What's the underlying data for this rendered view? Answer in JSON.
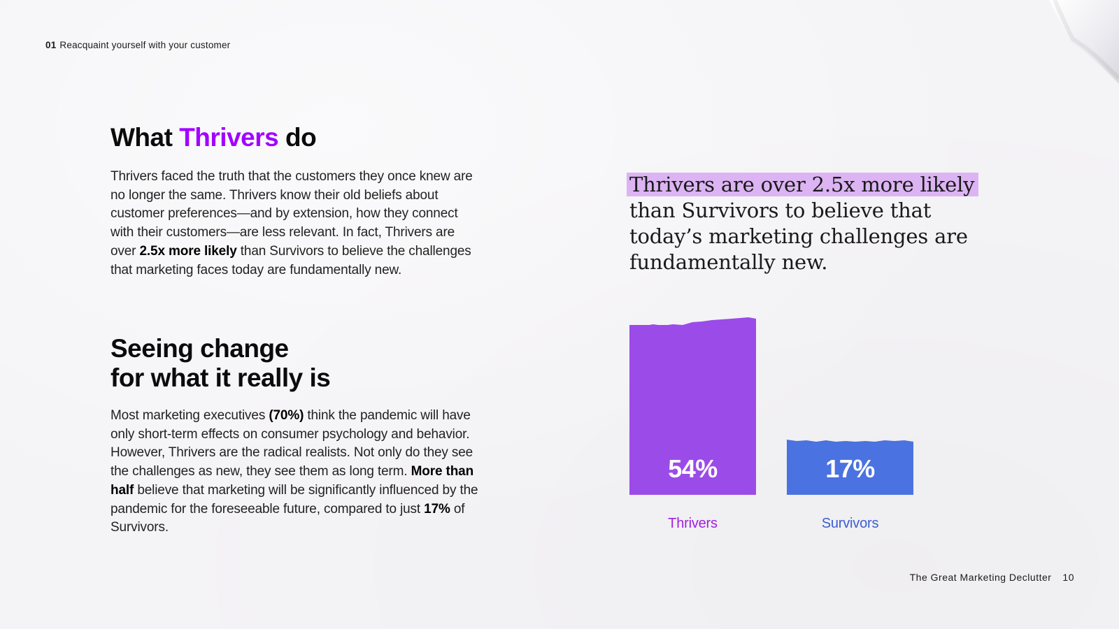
{
  "header": {
    "section_number": "01",
    "section_title": "Reacquaint yourself with your customer"
  },
  "heading1": {
    "prefix": "What ",
    "accent": "Thrivers",
    "suffix": " do"
  },
  "paragraph1": {
    "part1": "Thrivers faced the truth that the customers they once knew are no longer the same. Thrivers know their old beliefs about customer preferences—and by extension, how they connect with their customers—are less relevant. In fact, Thrivers are over ",
    "bold1": "2.5x more likely",
    "part2": " than Survivors to believe the challenges that marketing faces today are fundamentally new."
  },
  "heading2": {
    "line1": "Seeing change",
    "line2": "for what it really is"
  },
  "paragraph2": {
    "part1": "Most marketing executives ",
    "bold1": "(70%)",
    "part2": " think the pandemic will have only short-term effects on consumer psychology and behavior. However, Thrivers are the radical realists. Not only do they see the challenges as new, they see them as long term. ",
    "bold2": "More than half",
    "part3": " believe that marketing will be significantly influenced by the pandemic for the foreseeable future, compared to just ",
    "bold3": "17%",
    "part4": " of Survivors."
  },
  "quote": {
    "highlight": "Thrivers are over 2.5x more likely",
    "rest": " than Survivors to believe that today’s marketing challenges are fundamentally new."
  },
  "chart_data": {
    "type": "bar",
    "title": "",
    "categories": [
      "Thrivers",
      "Survivors"
    ],
    "values": [
      54,
      17
    ],
    "value_labels": [
      "54%",
      "17%"
    ],
    "colors": [
      "#9b4be8",
      "#4a72e0"
    ],
    "label_colors": [
      "#a01fe0",
      "#3b5fcf"
    ],
    "ylim": [
      0,
      60
    ],
    "xlabel": "",
    "ylabel": ""
  },
  "colors": {
    "accent": "#a100ff",
    "highlight": "#dcb4f3",
    "background": "#f4f3f6"
  },
  "footer": {
    "publication": "The Great Marketing Declutter",
    "page_number": "10"
  }
}
